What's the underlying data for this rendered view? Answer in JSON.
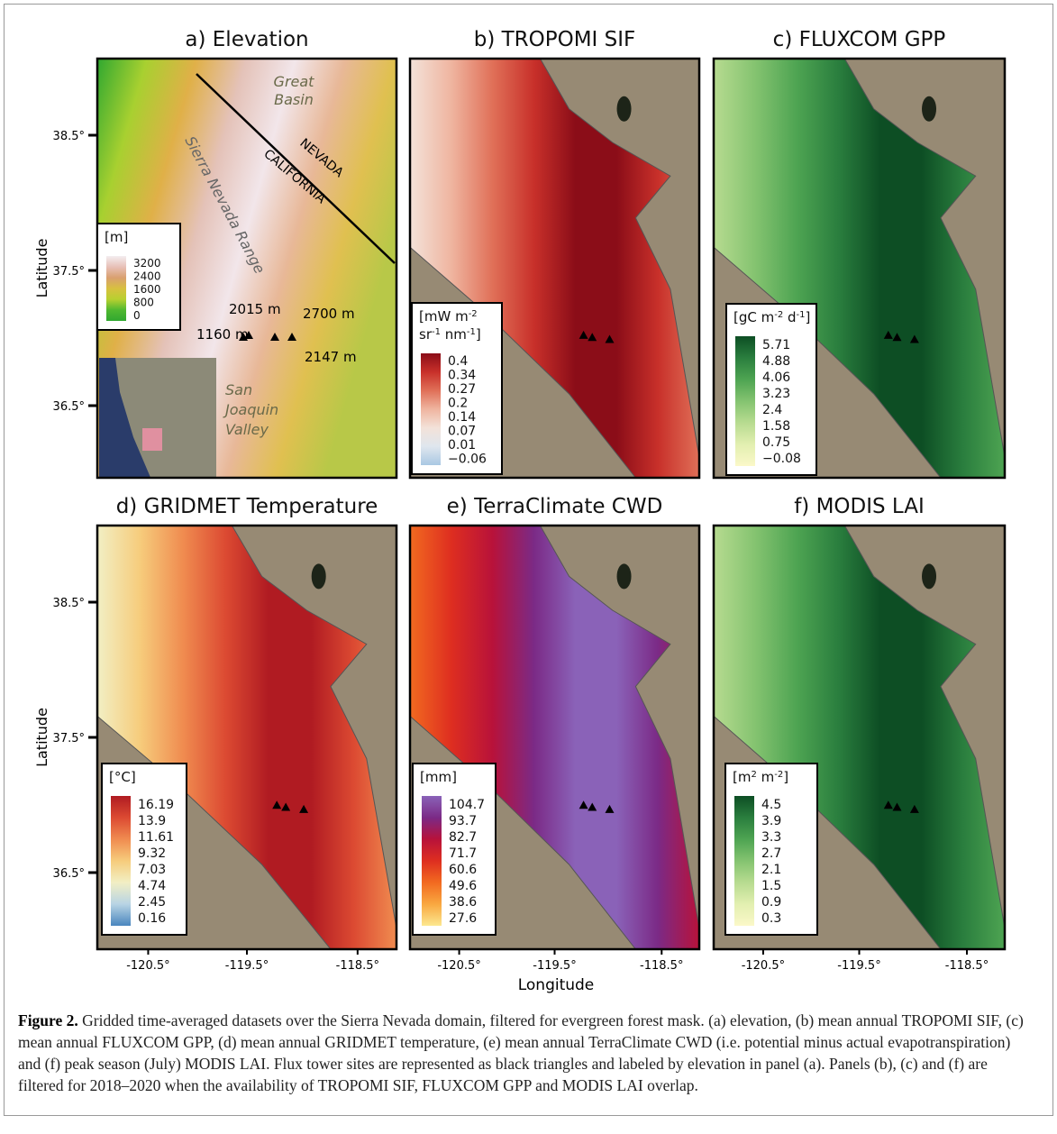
{
  "panels": [
    {
      "title": "a) Elevation",
      "legend": {
        "title": [
          [
            "[m]"
          ]
        ],
        "ticks": [
          "3200",
          "2400",
          "1600",
          "800",
          "0"
        ]
      },
      "annotations": {
        "great_basin": [
          "Great",
          "Basin"
        ],
        "nevada": "NEVADA",
        "california": "CALIFORNIA",
        "range": "Sierra Nevada Range",
        "sites": [
          "2015 m",
          "2700 m",
          "1160 m",
          "2147 m"
        ],
        "valley": [
          "San",
          "Joaquin",
          "Valley"
        ]
      }
    },
    {
      "title": "b) TROPOMI SIF",
      "legend": {
        "title": [
          [
            "[mW m",
            "-2"
          ],
          [
            "sr",
            "-1",
            " nm",
            "-1",
            "]"
          ]
        ],
        "ticks": [
          "0.4",
          "0.34",
          "0.27",
          "0.2",
          "0.14",
          "0.07",
          "0.01",
          "−0.06"
        ]
      }
    },
    {
      "title": "c) FLUXCOM GPP",
      "legend": {
        "title": [
          [
            "[gC m",
            "-2",
            " d",
            "-1",
            "]"
          ]
        ],
        "ticks": [
          "5.71",
          "4.88",
          "4.06",
          "3.23",
          "2.4",
          "1.58",
          "0.75",
          "−0.08"
        ]
      }
    },
    {
      "title": "d) GRIDMET Temperature",
      "legend": {
        "title": [
          [
            "[°C]"
          ]
        ],
        "ticks": [
          "16.19",
          "13.9",
          "11.61",
          "9.32",
          "7.03",
          "4.74",
          "2.45",
          "0.16"
        ]
      }
    },
    {
      "title": "e) TerraClimate CWD",
      "legend": {
        "title": [
          [
            "[mm]"
          ]
        ],
        "ticks": [
          "104.7",
          "93.7",
          "82.7",
          "71.7",
          "60.6",
          "49.6",
          "38.6",
          "27.6"
        ]
      }
    },
    {
      "title": "f) MODIS LAI",
      "legend": {
        "title": [
          [
            "[m",
            "2",
            " m",
            "-2",
            "]"
          ]
        ],
        "ticks": [
          "4.5",
          "3.9",
          "3.3",
          "2.7",
          "2.1",
          "1.5",
          "0.9",
          "0.3"
        ]
      }
    }
  ],
  "axes": {
    "y_label": "Latitude",
    "x_label": "Longitude",
    "y_ticks": [
      "38.5°",
      "37.5°",
      "36.5°"
    ],
    "x_ticks": [
      "-120.5°",
      "-119.5°",
      "-118.5°"
    ]
  },
  "caption": {
    "label": "Figure 2.",
    "text": " Gridded time-averaged datasets over the Sierra Nevada domain, filtered for evergreen forest mask. (a) elevation, (b) mean annual TROPOMI SIF, (c) mean annual FLUXCOM GPP, (d) mean annual GRIDMET temperature, (e) mean annual TerraClimate CWD (i.e. potential minus actual evapotranspiration) and (f) peak season (July) MODIS LAI. Flux tower sites are represented as black triangles and labeled by elevation in panel (a). Panels (b), (c) and (f) are filtered for 2018–2020 when the availability of TROPOMI SIF, FLUXCOM GPP and MODIS LAI overlap."
  }
}
